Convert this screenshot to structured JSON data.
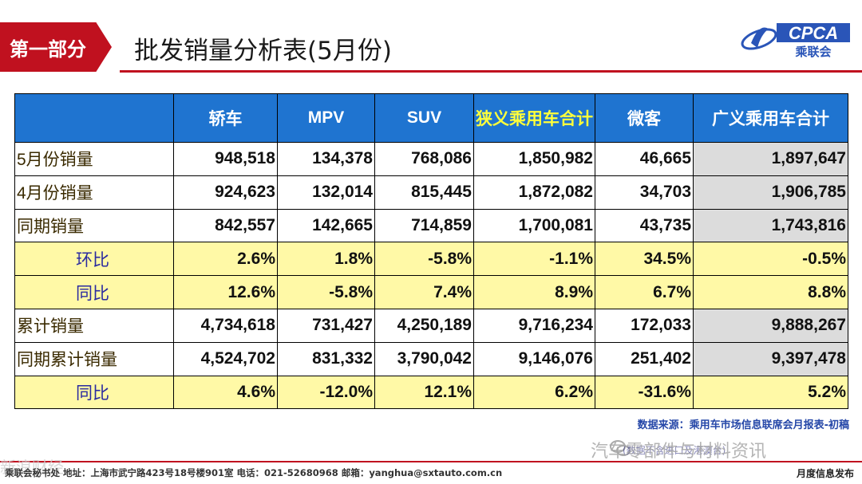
{
  "header": {
    "section_label": "第一部分",
    "title": "批发销量分析表(5月份)",
    "logo_text": "CPCA",
    "logo_sub": "乘联会"
  },
  "table": {
    "columns": [
      "",
      "轿车",
      "MPV",
      "SUV",
      "狭义乘用车合计",
      "微客",
      "广义乘用车合计"
    ],
    "rows": [
      {
        "label": "5月份销量",
        "values": [
          "948,518",
          "134,378",
          "768,086",
          "1,850,982",
          "46,665",
          "1,897,647"
        ],
        "style": "plain"
      },
      {
        "label": "4月份销量",
        "values": [
          "924,623",
          "132,014",
          "815,445",
          "1,872,082",
          "34,703",
          "1,906,785"
        ],
        "style": "plain"
      },
      {
        "label": "同期销量",
        "values": [
          "842,557",
          "142,665",
          "714,859",
          "1,700,081",
          "43,735",
          "1,743,816"
        ],
        "style": "plain"
      },
      {
        "label": "环比",
        "values": [
          "2.6%",
          "1.8%",
          "-5.8%",
          "-1.1%",
          "34.5%",
          "-0.5%"
        ],
        "style": "yellow"
      },
      {
        "label": "同比",
        "values": [
          "12.6%",
          "-5.8%",
          "7.4%",
          "8.9%",
          "6.7%",
          "8.8%"
        ],
        "style": "yellow"
      },
      {
        "label": "累计销量",
        "values": [
          "4,734,618",
          "731,427",
          "4,250,189",
          "9,716,234",
          "172,033",
          "9,888,267"
        ],
        "style": "plain"
      },
      {
        "label": "同期累计销量",
        "values": [
          "4,524,702",
          "831,332",
          "3,790,042",
          "9,146,076",
          "251,402",
          "9,397,478"
        ],
        "style": "plain"
      },
      {
        "label": "同比",
        "values": [
          "4.6%",
          "-12.0%",
          "12.1%",
          "6.2%",
          "-31.6%",
          "5.2%"
        ],
        "style": "yellow"
      }
    ]
  },
  "source_note": "数据来源：乘用车市场信息联席会月报表-初稿",
  "watermark_text": "汽车零部件与材料资讯",
  "watermark_sub": "(数据不含进口及港澳台)",
  "footer": {
    "text": "乘联会秘书处    地址：上海市武宁路423号18号楼901室    电话：021-52680968    邮箱：yanghua@sxtauto.com.cn",
    "right": "月度信息发布",
    "corner_mark": "新浪财经"
  },
  "colors": {
    "brand_red": "#c0111f",
    "header_blue": "#1f74d0",
    "highlight_yellow": "#fff9a6",
    "total_grey": "#dcdcdc"
  }
}
